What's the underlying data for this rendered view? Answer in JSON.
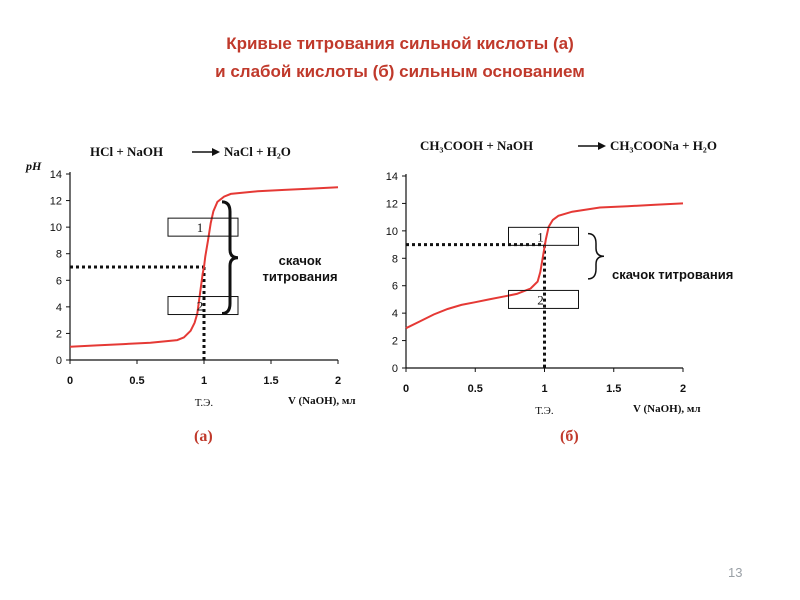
{
  "slide": {
    "title_line1": "Кривые титрования сильной кислоты (а)",
    "title_line2": "и слабой кислоты (б) сильным основанием",
    "page_number": "13"
  },
  "colors": {
    "title": "#c0392b",
    "curve": "#e53935",
    "axis": "#111111",
    "text": "#111111"
  },
  "chart_data": [
    {
      "type": "line",
      "panel_label": "(а)",
      "equation": {
        "left": "HCl + NaOH",
        "right": "NaCl + H₂O"
      },
      "ylabel": "pH",
      "xlabel": "V (NaOH), мл",
      "equivalence_label": "Т.Э.",
      "xlim": [
        0,
        2
      ],
      "ylim": [
        0,
        14
      ],
      "xticks": [
        0,
        0.5,
        1,
        1.5,
        2
      ],
      "xtick_labels": [
        "0",
        "0.5",
        "1",
        "1.5",
        "2"
      ],
      "yticks": [
        0,
        2,
        4,
        6,
        8,
        10,
        12,
        14
      ],
      "ytick_labels": [
        "0",
        "2",
        "4",
        "6",
        "8",
        "10",
        "12",
        "14"
      ],
      "grid": false,
      "series": [
        {
          "x": [
            0,
            0.2,
            0.4,
            0.6,
            0.8,
            0.85,
            0.9,
            0.93,
            0.95,
            0.97,
            0.99,
            1.0,
            1.01,
            1.03,
            1.05,
            1.07,
            1.1,
            1.15,
            1.2,
            1.4,
            1.6,
            1.8,
            2.0
          ],
          "y": [
            1.0,
            1.1,
            1.2,
            1.3,
            1.5,
            1.7,
            2.2,
            2.8,
            3.5,
            5.0,
            6.5,
            7.0,
            7.8,
            9.0,
            10.3,
            11.2,
            11.9,
            12.3,
            12.5,
            12.7,
            12.8,
            12.9,
            13.0
          ]
        }
      ],
      "equivalence": {
        "x": 1,
        "ph": 7
      },
      "jump_range": [
        3.5,
        11.9
      ],
      "markers": [
        "1",
        "2"
      ],
      "annotation": [
        "скачок",
        "титрования"
      ]
    },
    {
      "type": "line",
      "panel_label": "(б)",
      "equation": {
        "left": "CH₃COOH + NaOH",
        "right": "CH₃COONa + H₂O"
      },
      "ylabel": "",
      "xlabel": "V (NaOH), мл",
      "equivalence_label": "Т.Э.",
      "xlim": [
        0,
        2
      ],
      "ylim": [
        0,
        14
      ],
      "xticks": [
        0,
        0.5,
        1,
        1.5,
        2
      ],
      "xtick_labels": [
        "0",
        "0.5",
        "1",
        "1.5",
        "2"
      ],
      "yticks": [
        0,
        2,
        4,
        6,
        8,
        10,
        12,
        14
      ],
      "ytick_labels": [
        "0",
        "2",
        "4",
        "6",
        "8",
        "10",
        "12",
        "14"
      ],
      "grid": false,
      "series": [
        {
          "x": [
            0,
            0.1,
            0.2,
            0.3,
            0.4,
            0.5,
            0.6,
            0.7,
            0.8,
            0.9,
            0.95,
            0.97,
            0.99,
            1.0,
            1.01,
            1.03,
            1.06,
            1.1,
            1.2,
            1.4,
            1.6,
            1.8,
            2.0
          ],
          "y": [
            2.9,
            3.4,
            3.9,
            4.3,
            4.6,
            4.8,
            5.0,
            5.2,
            5.4,
            5.8,
            6.3,
            7.0,
            8.2,
            8.8,
            9.4,
            10.3,
            10.8,
            11.1,
            11.4,
            11.7,
            11.8,
            11.9,
            12.0
          ]
        }
      ],
      "equivalence": {
        "x": 1,
        "ph": 9
      },
      "jump_range": [
        6.5,
        9.8
      ],
      "markers": [
        "1",
        "2"
      ],
      "annotation": [
        "скачок титрования"
      ]
    }
  ]
}
